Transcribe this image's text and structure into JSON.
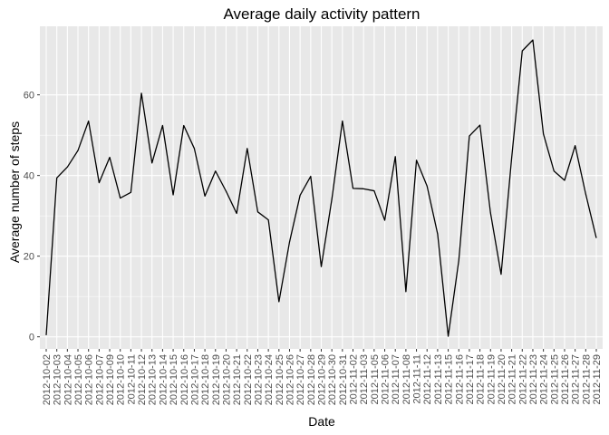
{
  "chart_data": {
    "type": "line",
    "title": "Average daily activity pattern",
    "xlabel": "Date",
    "ylabel": "Average number of steps",
    "grid": true,
    "legend": "none",
    "ylim": [
      -3,
      77
    ],
    "yticks": [
      0,
      20,
      40,
      60
    ],
    "colors": {
      "panel": "#E8E8E8",
      "grid_major": "#FFFFFF",
      "line": "#000000",
      "tick_text": "#4D4D4D"
    },
    "categories": [
      "2012-10-02",
      "2012-10-03",
      "2012-10-04",
      "2012-10-05",
      "2012-10-06",
      "2012-10-07",
      "2012-10-09",
      "2012-10-10",
      "2012-10-11",
      "2012-10-12",
      "2012-10-13",
      "2012-10-14",
      "2012-10-15",
      "2012-10-16",
      "2012-10-17",
      "2012-10-18",
      "2012-10-19",
      "2012-10-20",
      "2012-10-21",
      "2012-10-22",
      "2012-10-23",
      "2012-10-24",
      "2012-10-25",
      "2012-10-26",
      "2012-10-27",
      "2012-10-28",
      "2012-10-29",
      "2012-10-30",
      "2012-10-31",
      "2012-11-02",
      "2012-11-03",
      "2012-11-05",
      "2012-11-06",
      "2012-11-07",
      "2012-11-08",
      "2012-11-11",
      "2012-11-12",
      "2012-11-13",
      "2012-11-15",
      "2012-11-16",
      "2012-11-17",
      "2012-11-18",
      "2012-11-19",
      "2012-11-20",
      "2012-11-21",
      "2012-11-22",
      "2012-11-23",
      "2012-11-24",
      "2012-11-25",
      "2012-11-26",
      "2012-11-27",
      "2012-11-28",
      "2012-11-29"
    ],
    "values": [
      0.4,
      39.4,
      42.1,
      46.2,
      53.5,
      38.2,
      44.5,
      34.4,
      35.8,
      60.4,
      43.1,
      52.4,
      35.2,
      52.4,
      46.7,
      34.9,
      41.1,
      36.1,
      30.6,
      46.7,
      30.97,
      29.0,
      8.7,
      23.5,
      35.1,
      39.8,
      17.4,
      34.1,
      53.5,
      36.8,
      36.7,
      36.2,
      28.9,
      44.7,
      11.2,
      43.8,
      37.4,
      25.5,
      0.14,
      18.9,
      49.8,
      52.5,
      30.7,
      15.5,
      44.4,
      70.9,
      73.6,
      50.3,
      41.1,
      38.8,
      47.4,
      35.4,
      24.5
    ]
  }
}
